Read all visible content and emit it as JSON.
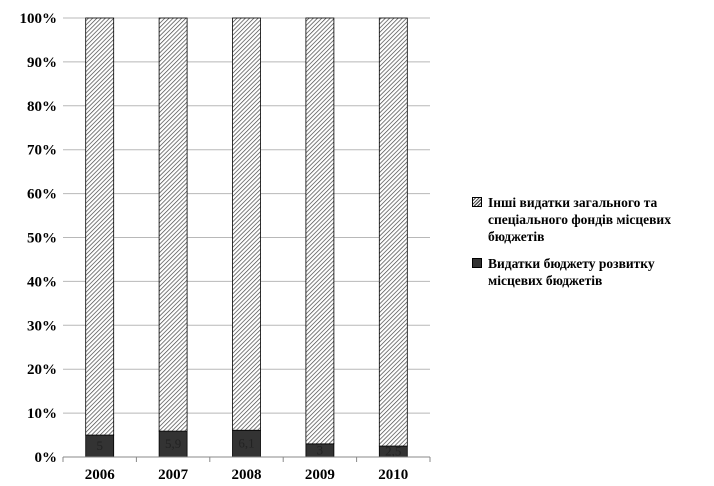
{
  "chart_data": {
    "type": "bar",
    "stacked": true,
    "percent_stacked": true,
    "categories": [
      "2006",
      "2007",
      "2008",
      "2009",
      "2010"
    ],
    "series": [
      {
        "name": "Видатки бюджету розвитку місцевих бюджетів",
        "values": [
          5,
          5.9,
          6.1,
          3,
          2.5
        ],
        "labels": [
          "5",
          "5,9",
          "6,1",
          "3",
          "2,5"
        ],
        "color": "#333333",
        "fill": "solid"
      },
      {
        "name": "Інші видатки загального та спеціального фондів місцевих бюджетів",
        "values": [
          95,
          94.1,
          93.9,
          97,
          97.5
        ],
        "color": "#ffffff",
        "fill": "diagonal-hatch"
      }
    ],
    "ylim": [
      0,
      100
    ],
    "yticks": [
      "0%",
      "10%",
      "20%",
      "30%",
      "40%",
      "50%",
      "60%",
      "70%",
      "80%",
      "90%",
      "100%"
    ],
    "grid": true,
    "legend_position": "right"
  }
}
